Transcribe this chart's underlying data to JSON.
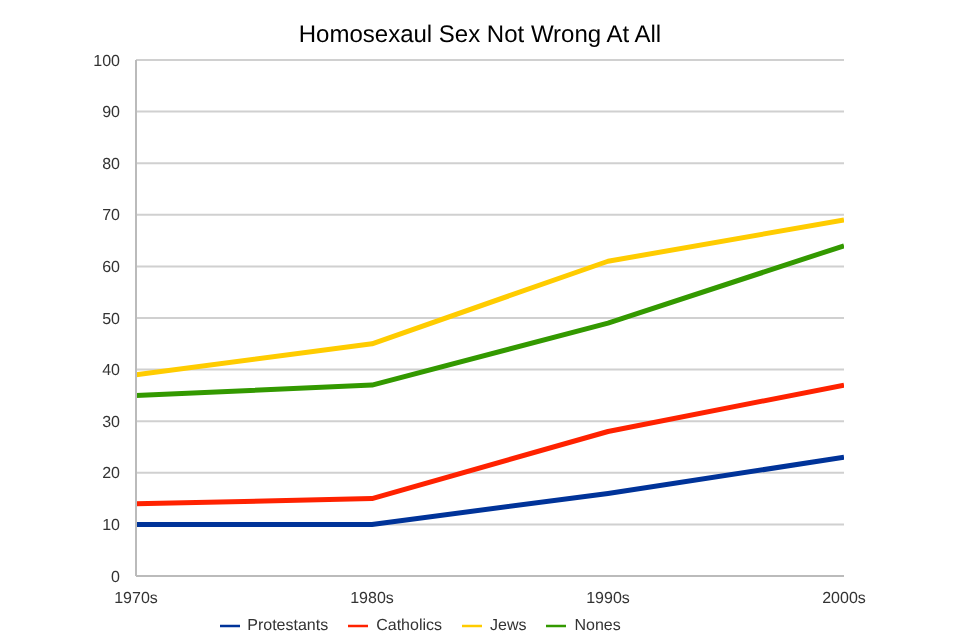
{
  "chart_data": {
    "type": "line",
    "title": "Homosexaul Sex Not Wrong At All",
    "categories": [
      "1970s",
      "1980s",
      "1990s",
      "2000s"
    ],
    "series": [
      {
        "name": "Protestants",
        "color": "#003399",
        "values": [
          10,
          10,
          16,
          23
        ]
      },
      {
        "name": "Catholics",
        "color": "#ff2200",
        "values": [
          14,
          15,
          28,
          37
        ]
      },
      {
        "name": "Jews",
        "color": "#ffcc00",
        "values": [
          39,
          45,
          61,
          69
        ]
      },
      {
        "name": "Nones",
        "color": "#339900",
        "values": [
          35,
          37,
          49,
          64
        ]
      }
    ],
    "ylim": [
      0,
      100
    ],
    "yticks": [
      0,
      10,
      20,
      30,
      40,
      50,
      60,
      70,
      80,
      90,
      100
    ],
    "grid": "y",
    "legend": "bottom",
    "marker": "none",
    "line_style": "solid"
  }
}
